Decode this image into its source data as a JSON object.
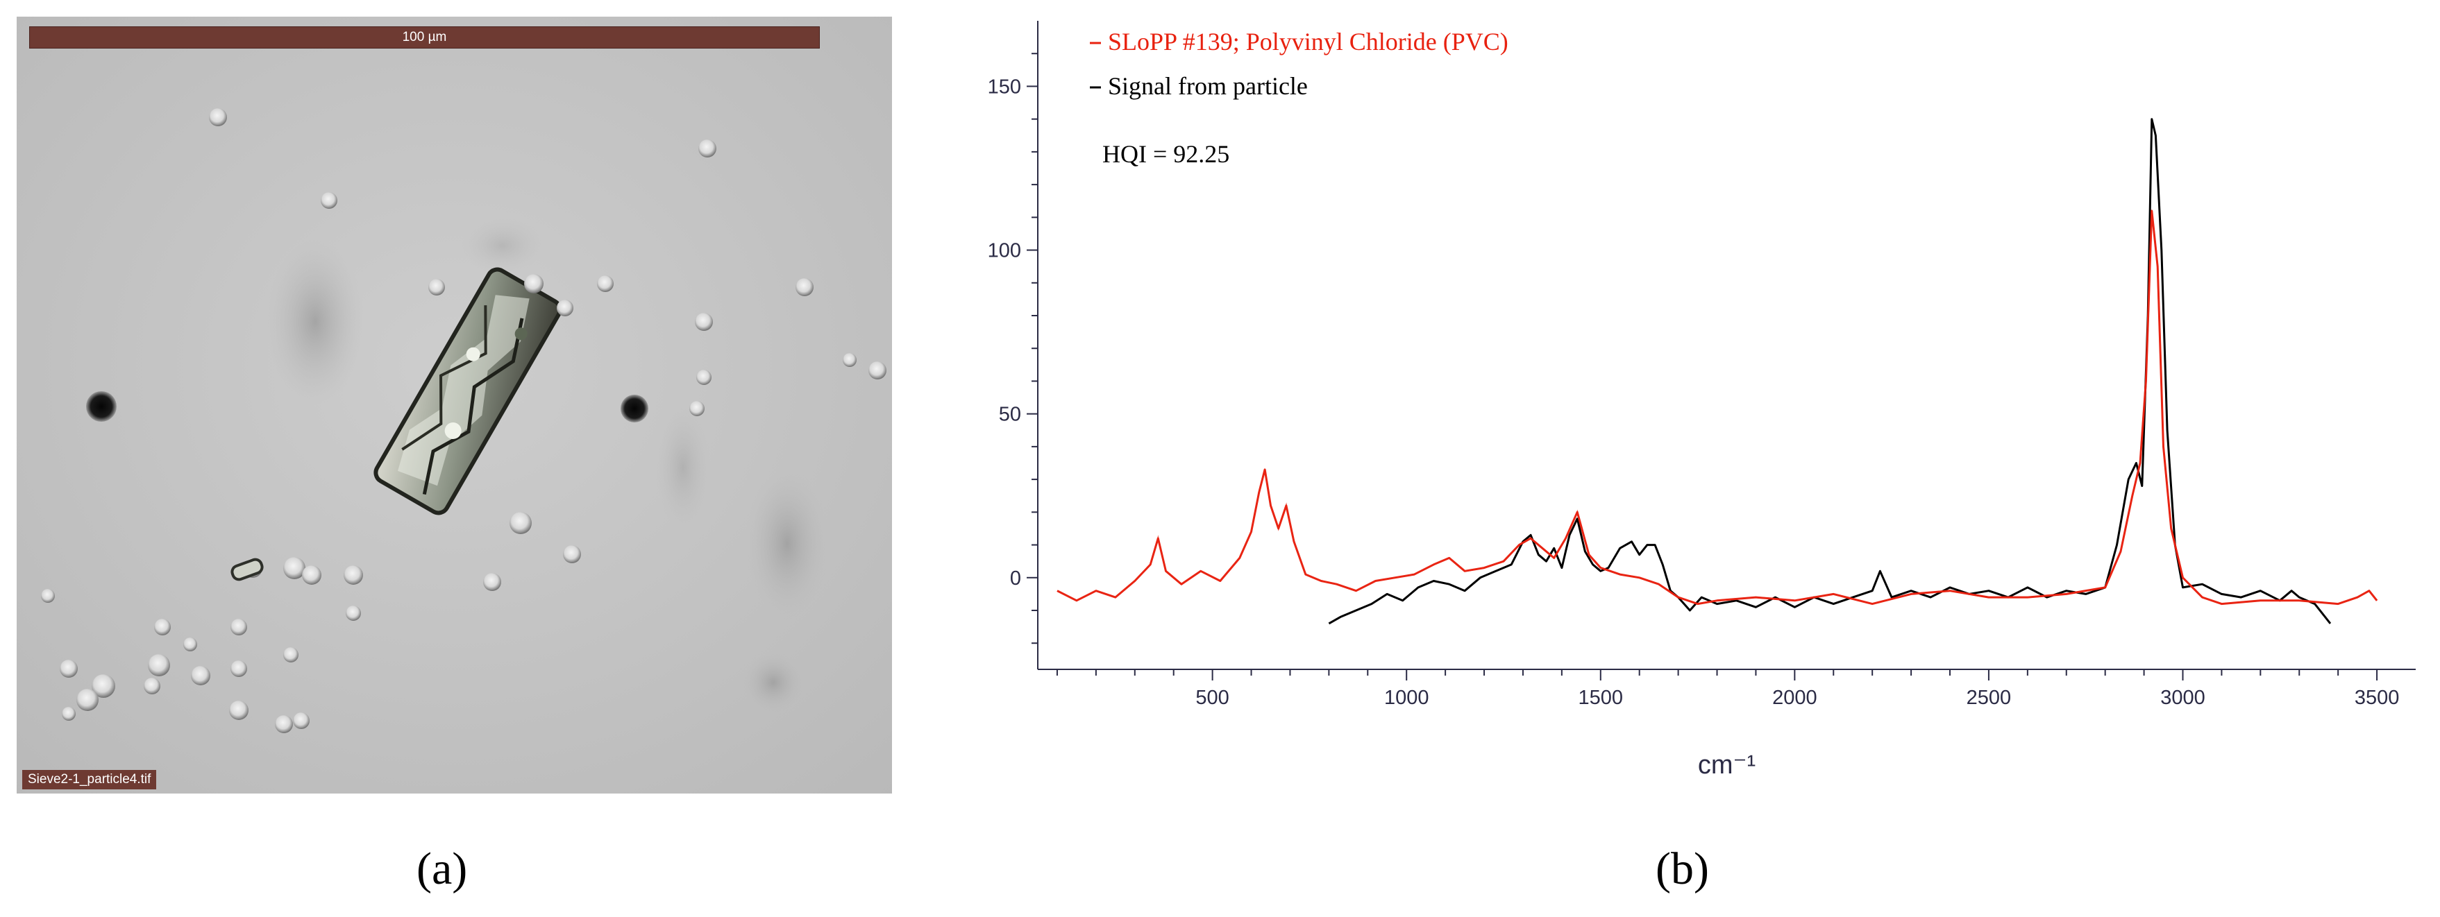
{
  "panel_a": {
    "scale_bar_label": "100 µm",
    "file_label": "Sieve2-1_particle4.tif",
    "caption": "(a)"
  },
  "panel_b": {
    "caption": "(b)"
  },
  "chart_data": {
    "type": "line",
    "title": "",
    "xlabel": "cm⁻¹",
    "ylabel": "",
    "xlim": [
      50,
      3600
    ],
    "ylim": [
      -28,
      170
    ],
    "x_ticks": [
      500,
      1000,
      1500,
      2000,
      2500,
      3000,
      3500
    ],
    "y_ticks": [
      0,
      50,
      100,
      150
    ],
    "grid": false,
    "legend_position": "top-left",
    "annotation": "HQI = 92.25",
    "series": [
      {
        "name": "SLoPP #139; Polyvinyl Chloride (PVC)",
        "color": "#e8210f",
        "x": [
          100,
          150,
          200,
          250,
          300,
          340,
          360,
          380,
          420,
          470,
          520,
          570,
          600,
          620,
          635,
          650,
          670,
          690,
          710,
          740,
          780,
          820,
          870,
          920,
          970,
          1020,
          1070,
          1110,
          1150,
          1200,
          1250,
          1290,
          1320,
          1350,
          1380,
          1410,
          1440,
          1470,
          1500,
          1550,
          1600,
          1650,
          1700,
          1750,
          1800,
          1900,
          2000,
          2100,
          2200,
          2300,
          2400,
          2500,
          2600,
          2700,
          2800,
          2840,
          2870,
          2890,
          2905,
          2920,
          2935,
          2950,
          2970,
          3000,
          3050,
          3100,
          3200,
          3300,
          3400,
          3450,
          3480,
          3500
        ],
        "y": [
          -4,
          -7,
          -4,
          -6,
          -1,
          4,
          12,
          2,
          -2,
          2,
          -1,
          6,
          14,
          26,
          33,
          22,
          15,
          22,
          11,
          1,
          -1,
          -2,
          -4,
          -1,
          0,
          1,
          4,
          6,
          2,
          3,
          5,
          10,
          12,
          9,
          6,
          12,
          20,
          7,
          3,
          1,
          0,
          -2,
          -6,
          -8,
          -7,
          -6,
          -7,
          -5,
          -8,
          -5,
          -4,
          -6,
          -6,
          -5,
          -3,
          8,
          25,
          35,
          60,
          112,
          95,
          40,
          15,
          0,
          -6,
          -8,
          -7,
          -7,
          -8,
          -6,
          -4,
          -7
        ]
      },
      {
        "name": "Signal from particle",
        "color": "#000000",
        "x": [
          800,
          830,
          870,
          910,
          950,
          990,
          1030,
          1070,
          1110,
          1150,
          1190,
          1230,
          1270,
          1300,
          1320,
          1340,
          1360,
          1380,
          1400,
          1420,
          1440,
          1460,
          1480,
          1500,
          1520,
          1550,
          1580,
          1600,
          1620,
          1640,
          1660,
          1680,
          1700,
          1730,
          1760,
          1800,
          1850,
          1900,
          1950,
          2000,
          2050,
          2100,
          2150,
          2200,
          2220,
          2250,
          2300,
          2350,
          2400,
          2450,
          2500,
          2550,
          2600,
          2650,
          2700,
          2750,
          2800,
          2830,
          2860,
          2880,
          2895,
          2910,
          2920,
          2930,
          2945,
          2960,
          2980,
          3000,
          3050,
          3100,
          3150,
          3200,
          3250,
          3280,
          3300,
          3340,
          3380
        ],
        "y": [
          -14,
          -12,
          -10,
          -8,
          -5,
          -7,
          -3,
          -1,
          -2,
          -4,
          0,
          2,
          4,
          11,
          13,
          7,
          5,
          9,
          3,
          13,
          18,
          8,
          4,
          2,
          3,
          9,
          11,
          7,
          10,
          10,
          4,
          -4,
          -6,
          -10,
          -6,
          -8,
          -7,
          -9,
          -6,
          -9,
          -6,
          -8,
          -6,
          -4,
          2,
          -6,
          -4,
          -6,
          -3,
          -5,
          -4,
          -6,
          -3,
          -6,
          -4,
          -5,
          -3,
          10,
          30,
          35,
          28,
          80,
          140,
          135,
          100,
          45,
          10,
          -3,
          -2,
          -5,
          -6,
          -4,
          -7,
          -4,
          -6,
          -8,
          -14
        ]
      }
    ]
  }
}
